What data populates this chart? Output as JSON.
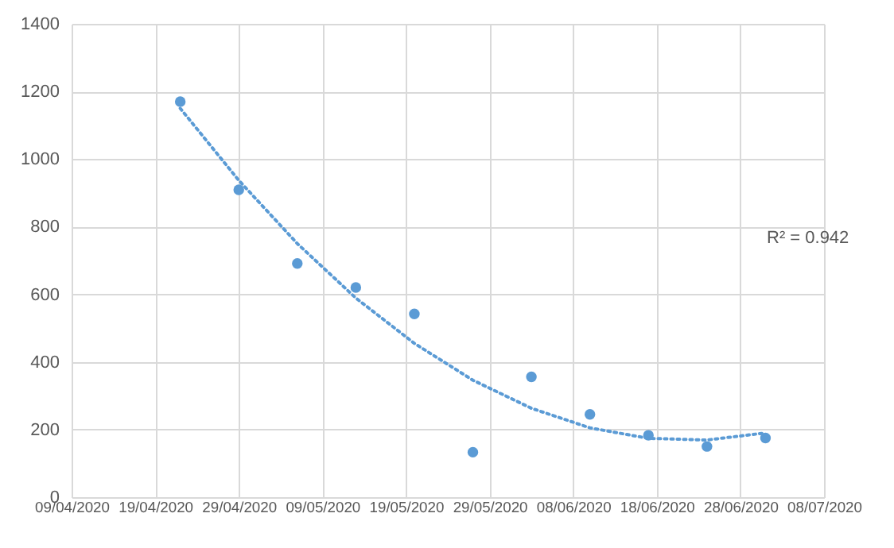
{
  "chart_data": {
    "type": "scatter",
    "x": [
      "2020-04-22",
      "2020-04-29",
      "2020-05-06",
      "2020-05-13",
      "2020-05-20",
      "2020-05-27",
      "2020-06-03",
      "2020-06-10",
      "2020-06-17",
      "2020-06-24",
      "2020-07-01"
    ],
    "series": [
      {
        "color": "#5b9bd5",
        "values": [
          1170,
          909,
          691,
          620,
          542,
          133,
          356,
          245,
          183,
          150,
          175
        ]
      },
      {
        "type": "line",
        "color": "#5b9bd5",
        "line_style": "dotted",
        "marker": "none",
        "values": [
          1150,
          937,
          750,
          589,
          455,
          346,
          263,
          205,
          174,
          169,
          190
        ]
      }
    ],
    "xlim": [
      "2020-04-09",
      "2020-07-08"
    ],
    "xticks": [
      {
        "value": "2020-04-09",
        "label": "09/04/2020"
      },
      {
        "value": "2020-04-19",
        "label": "19/04/2020"
      },
      {
        "value": "2020-04-29",
        "label": "29/04/2020"
      },
      {
        "value": "2020-05-09",
        "label": "09/05/2020"
      },
      {
        "value": "2020-05-19",
        "label": "19/05/2020"
      },
      {
        "value": "2020-05-29",
        "label": "29/05/2020"
      },
      {
        "value": "2020-06-08",
        "label": "08/06/2020"
      },
      {
        "value": "2020-06-18",
        "label": "18/06/2020"
      },
      {
        "value": "2020-06-28",
        "label": "28/06/2020"
      },
      {
        "value": "2020-07-08",
        "label": "08/07/2020"
      }
    ],
    "ylim": [
      0,
      1400
    ],
    "yticks": [
      0,
      200,
      400,
      600,
      800,
      1000,
      1200,
      1400
    ],
    "grid": true,
    "marker": "circle",
    "annotations": [
      "R² = 0.942"
    ]
  }
}
